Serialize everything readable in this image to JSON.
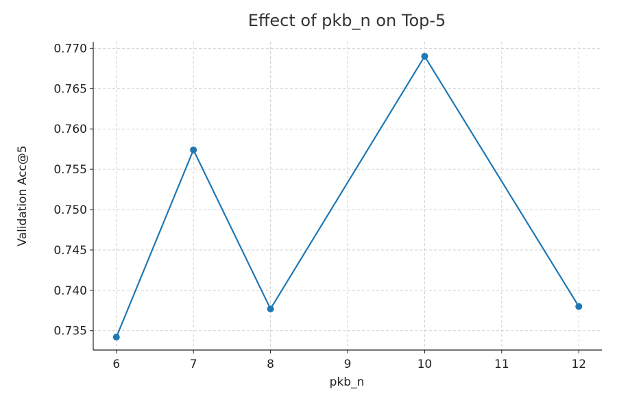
{
  "chart_data": {
    "type": "line",
    "title": "Effect of pkb_n on Top-5",
    "xlabel": "pkb_n",
    "ylabel": "Validation Acc@5",
    "x": [
      6,
      7,
      8,
      10,
      12
    ],
    "series": [
      {
        "values": [
          0.7342,
          0.7574,
          0.7377,
          0.769,
          0.738
        ],
        "color": "#1f77b4"
      }
    ],
    "xlim": [
      5.7,
      12.3
    ],
    "ylim": [
      0.7326,
      0.7708
    ],
    "xticks": [
      6,
      7,
      8,
      9,
      10,
      11,
      12
    ],
    "yticks": [
      0.735,
      0.74,
      0.745,
      0.75,
      0.755,
      0.76,
      0.765,
      0.77
    ],
    "ytick_labels": [
      "0.735",
      "0.740",
      "0.745",
      "0.750",
      "0.755",
      "0.760",
      "0.765",
      "0.770"
    ],
    "grid": true,
    "marker": "circle"
  }
}
